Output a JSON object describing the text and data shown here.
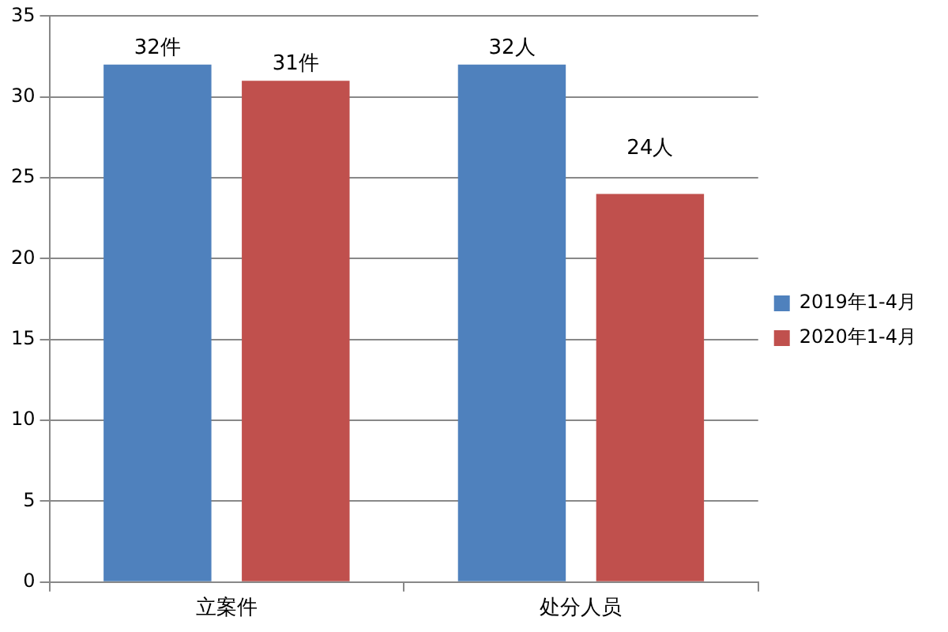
{
  "chart_data": {
    "type": "bar",
    "categories": [
      "立案件",
      "处分人员"
    ],
    "series": [
      {
        "name": "2019年1-4月",
        "color": "#4f81bd",
        "values": [
          32,
          32
        ],
        "value_labels": [
          "32件",
          "32人"
        ]
      },
      {
        "name": "2020年1-4月",
        "color": "#c0504d",
        "values": [
          31,
          24
        ],
        "value_labels": [
          "31件",
          "24人"
        ]
      }
    ],
    "ylim": [
      0,
      35
    ],
    "yticks": [
      0,
      5,
      10,
      15,
      20,
      25,
      30,
      35
    ],
    "grid": "y",
    "legend": "right"
  }
}
